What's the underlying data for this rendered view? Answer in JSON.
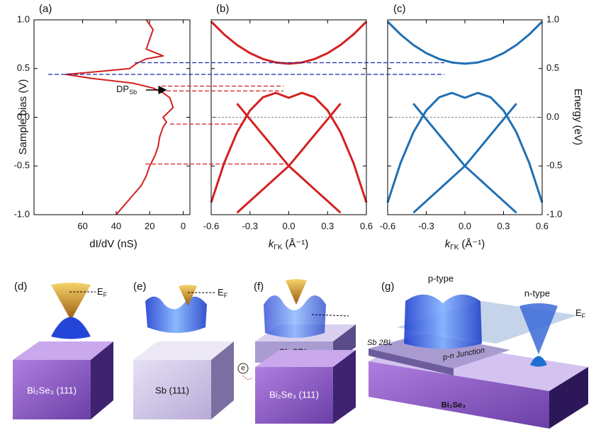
{
  "chart_data": [
    {
      "type": "line",
      "panel": "(a)",
      "ylabel": "Sample bias (V)",
      "xlabel": "dI/dV (nS)",
      "xlim": [
        89,
        -4
      ],
      "ylim": [
        -1,
        1
      ],
      "xticks": [
        60,
        40,
        20,
        0
      ],
      "yticks": [
        {
          "value": -1,
          "label": "-1.0"
        },
        -0.5,
        {
          "value": 0,
          "label": "0.0"
        },
        0.5,
        {
          "value": 1,
          "label": "1.0"
        }
      ],
      "ytick_side": "left",
      "zero_line": false,
      "annotation": {
        "text": "DP",
        "sub": "Sb",
        "value": 0.28
      },
      "series": [
        {
          "color": "#d42020",
          "x": [
            40,
            35,
            30,
            25,
            22,
            20,
            17,
            15,
            14,
            12,
            10,
            12,
            6,
            8,
            12,
            18,
            30,
            55,
            70,
            50,
            32,
            28,
            22,
            12,
            22,
            20,
            18,
            22
          ],
          "values": [
            -1,
            -0.9,
            -0.8,
            -0.7,
            -0.6,
            -0.5,
            -0.4,
            -0.3,
            -0.2,
            -0.1,
            -0.05,
            0,
            0.1,
            0.2,
            0.25,
            0.3,
            0.35,
            0.4,
            0.44,
            0.47,
            0.5,
            0.55,
            0.6,
            0.63,
            0.7,
            0.8,
            0.9,
            1
          ]
        }
      ],
      "guides": [
        {
          "value": 0.56,
          "color": "#1a2aa8"
        },
        {
          "value": 0.44,
          "color": "#1a2aa8"
        },
        {
          "value": 0.32,
          "color": "#d42020"
        },
        {
          "value": 0.27,
          "color": "#d42020"
        },
        {
          "value": -0.07,
          "color": "#d42020"
        },
        {
          "value": -0.48,
          "color": "#d42020"
        }
      ]
    },
    {
      "type": "line",
      "panel": "(b)",
      "xlabel": {
        "symbol": "k",
        "sub": "ΓK",
        "unit": "(Å⁻¹)"
      },
      "xlim": [
        -0.6,
        0.6
      ],
      "ylim": [
        -1,
        1
      ],
      "xticks": [
        -0.6,
        -0.3,
        {
          "value": 0,
          "label": "0.0"
        },
        0.3,
        0.6
      ],
      "yticks": [
        {
          "value": -1,
          "label": "-1.0"
        },
        -0.5,
        {
          "value": 0,
          "label": "0.0"
        },
        0.5,
        {
          "value": 1,
          "label": "1.0"
        }
      ],
      "ytick_side": "none",
      "zero_line": true,
      "x": [
        -0.6,
        -0.5,
        -0.4,
        -0.3,
        -0.2,
        -0.1,
        0,
        0.1,
        0.2,
        0.3,
        0.4,
        0.5,
        0.6
      ],
      "series": [
        {
          "color": "#d42020",
          "values": [
            -0.875,
            -0.47,
            -0.155,
            0.07,
            0.205,
            0.25,
            0.2,
            0.25,
            0.205,
            0.07,
            -0.155,
            -0.47,
            -0.875
          ]
        },
        {
          "color": "#d42020",
          "values": [
            null,
            null,
            0.14,
            -0.02,
            -0.18,
            -0.34,
            -0.5,
            -0.34,
            -0.18,
            -0.02,
            0.14,
            null,
            null
          ]
        },
        {
          "color": "#d42020",
          "values": [
            null,
            null,
            -0.98,
            -0.86,
            -0.74,
            -0.62,
            -0.5,
            -0.62,
            -0.74,
            -0.86,
            -0.98,
            null,
            null
          ]
        },
        {
          "color": "#d42020",
          "values": [
            0.982,
            0.85,
            0.742,
            0.658,
            0.598,
            0.562,
            0.55,
            0.562,
            0.598,
            0.658,
            0.742,
            0.85,
            0.982
          ]
        }
      ]
    },
    {
      "type": "line",
      "panel": "(c)",
      "xlabel": {
        "symbol": "k",
        "sub": "ΓK",
        "unit": "(Å⁻¹)"
      },
      "ylabel": "Energy (eV)",
      "xlim": [
        -0.6,
        0.6
      ],
      "ylim": [
        -1,
        1
      ],
      "xticks": [
        -0.6,
        -0.3,
        {
          "value": 0,
          "label": "0.0"
        },
        0.3,
        0.6
      ],
      "yticks": [
        {
          "value": -1,
          "label": "-1.0"
        },
        -0.5,
        {
          "value": 0,
          "label": "0.0"
        },
        0.5,
        {
          "value": 1,
          "label": "1.0"
        }
      ],
      "ytick_side": "right",
      "zero_line": true,
      "x": [
        -0.6,
        -0.5,
        -0.4,
        -0.3,
        -0.2,
        -0.1,
        0,
        0.1,
        0.2,
        0.3,
        0.4,
        0.5,
        0.6
      ],
      "series": [
        {
          "color": "#1f6fb4",
          "values": [
            -0.875,
            -0.47,
            -0.155,
            0.07,
            0.205,
            0.25,
            0.2,
            0.25,
            0.205,
            0.07,
            -0.155,
            -0.47,
            -0.875
          ]
        },
        {
          "color": "#1f6fb4",
          "values": [
            null,
            null,
            0.14,
            -0.02,
            -0.18,
            -0.34,
            -0.5,
            -0.34,
            -0.18,
            -0.02,
            0.14,
            null,
            null
          ]
        },
        {
          "color": "#1f6fb4",
          "values": [
            null,
            null,
            -0.98,
            -0.86,
            -0.74,
            -0.62,
            -0.5,
            -0.62,
            -0.74,
            -0.86,
            -0.98,
            null,
            null
          ]
        },
        {
          "color": "#1f6fb4",
          "values": [
            0.982,
            0.85,
            0.742,
            0.658,
            0.598,
            0.562,
            0.55,
            0.562,
            0.598,
            0.658,
            0.742,
            0.85,
            0.982
          ]
        }
      ]
    }
  ],
  "schematics": {
    "d": {
      "label": "(d)",
      "ef": "E",
      "ef_sub": "F",
      "substrate": "Bi₂Se₃ (111)"
    },
    "e": {
      "label": "(e)",
      "ef": "E",
      "ef_sub": "F",
      "substrate": "Sb (111)"
    },
    "f": {
      "label": "(f)",
      "film": "Sb 2BL",
      "substrate": "Bi₂Se₃ (111)",
      "electron": "e"
    },
    "g": {
      "label": "(g)",
      "p": "p-type",
      "n": "n-type",
      "ef": "E",
      "ef_sub": "F",
      "film": "Sb 2BL",
      "junction": "p-n Junction",
      "substrate": "Bi₂Se₃"
    }
  }
}
